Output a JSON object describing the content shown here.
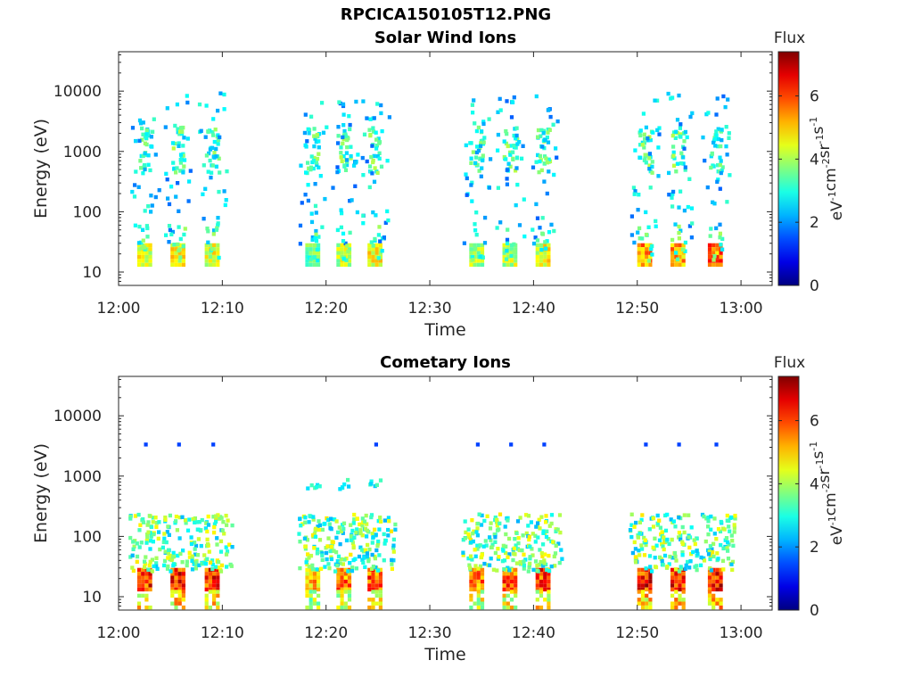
{
  "figure": {
    "title": "RPCICA150105T12.PNG"
  },
  "chart_data": [
    {
      "type": "heatmap",
      "title": "Solar Wind Ions",
      "xlabel": "Time",
      "ylabel": "Energy (eV)",
      "x_ticks": [
        "12:00",
        "12:10",
        "12:20",
        "12:30",
        "12:40",
        "12:50",
        "13:00"
      ],
      "y_ticks": [
        "10",
        "100",
        "1000",
        "10000"
      ],
      "x_range_minutes": [
        0,
        63
      ],
      "y_scale": "log",
      "y_range": [
        6,
        45000
      ],
      "colorbar": {
        "label": "Flux",
        "unit": "eV-1cm-2sr-1s-1",
        "ticks": [
          "0",
          "2",
          "4",
          "6"
        ],
        "range": [
          0,
          7.4
        ],
        "colormap": "jet"
      },
      "bursts": [
        {
          "time": 1.8,
          "intensity": 4.8
        },
        {
          "time": 5.0,
          "intensity": 5.0
        },
        {
          "time": 8.3,
          "intensity": 4.9
        },
        {
          "time": 18.0,
          "intensity": 4.0
        },
        {
          "time": 21.0,
          "intensity": 4.6
        },
        {
          "time": 24.0,
          "intensity": 5.0
        },
        {
          "time": 33.8,
          "intensity": 4.4
        },
        {
          "time": 37.0,
          "intensity": 4.6
        },
        {
          "time": 40.2,
          "intensity": 5.0
        },
        {
          "time": 50.0,
          "intensity": 6.0
        },
        {
          "time": 53.2,
          "intensity": 5.8
        },
        {
          "time": 56.8,
          "intensity": 6.2
        }
      ],
      "grid": false
    },
    {
      "type": "heatmap",
      "title": "Cometary Ions",
      "xlabel": "Time",
      "ylabel": "Energy (eV)",
      "x_ticks": [
        "12:00",
        "12:10",
        "12:20",
        "12:30",
        "12:40",
        "12:50",
        "13:00"
      ],
      "y_ticks": [
        "10",
        "100",
        "1000",
        "10000"
      ],
      "x_range_minutes": [
        0,
        63
      ],
      "y_scale": "log",
      "y_range": [
        6,
        45000
      ],
      "colorbar": {
        "label": "Flux",
        "unit": "eV-1cm-2sr-1s-1",
        "ticks": [
          "0",
          "2",
          "4",
          "6"
        ],
        "range": [
          0,
          7.4
        ],
        "colormap": "jet"
      },
      "bursts": [
        {
          "time": 1.8,
          "intensity": 6.8
        },
        {
          "time": 5.0,
          "intensity": 6.9
        },
        {
          "time": 8.3,
          "intensity": 6.8
        },
        {
          "time": 18.0,
          "intensity": 5.6
        },
        {
          "time": 21.0,
          "intensity": 6.2
        },
        {
          "time": 24.0,
          "intensity": 6.4
        },
        {
          "time": 33.8,
          "intensity": 6.2
        },
        {
          "time": 37.0,
          "intensity": 6.5
        },
        {
          "time": 40.2,
          "intensity": 6.6
        },
        {
          "time": 50.0,
          "intensity": 7.0
        },
        {
          "time": 53.2,
          "intensity": 6.9
        },
        {
          "time": 56.8,
          "intensity": 7.1
        }
      ],
      "grid": false
    }
  ]
}
